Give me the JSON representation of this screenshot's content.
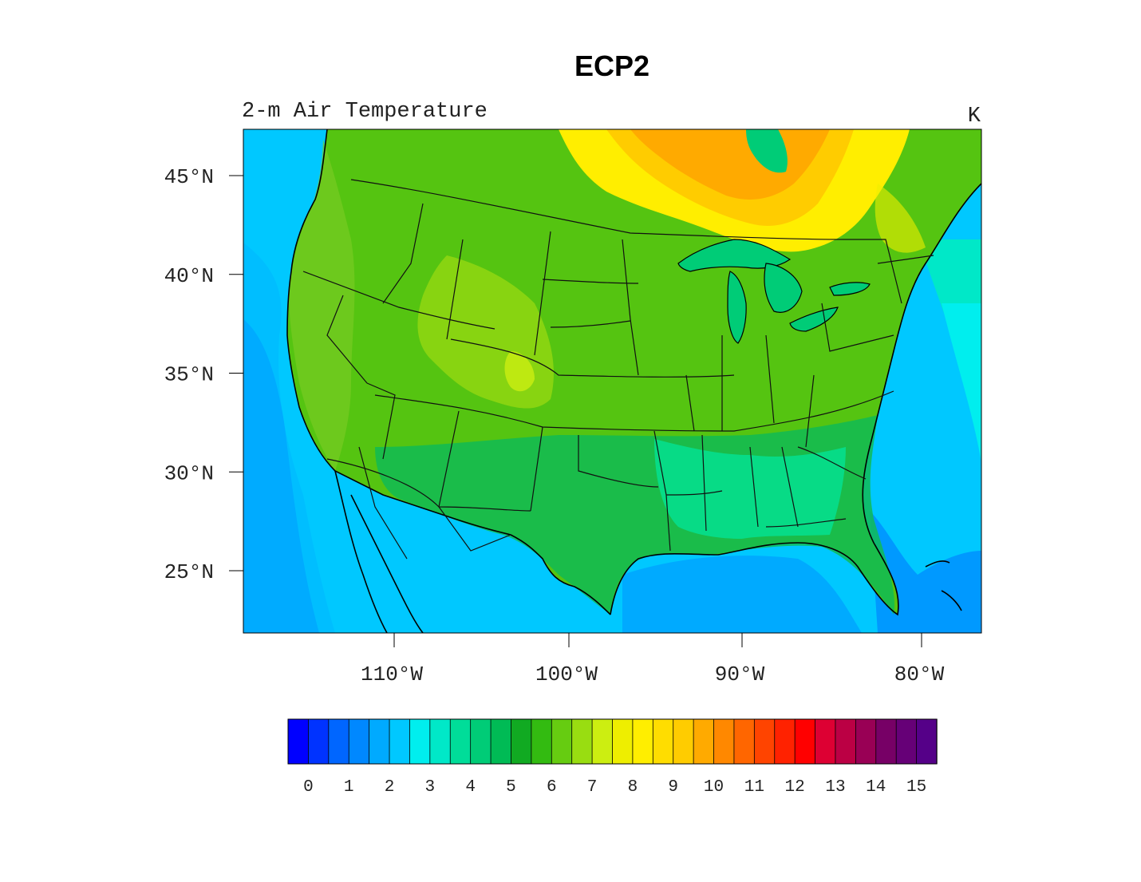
{
  "title": "ECP2",
  "subtitle": "2-m Air Temperature",
  "units": "K",
  "map": {
    "lat_ticks": [
      {
        "value": 45,
        "label": "45°N"
      },
      {
        "value": 40,
        "label": "40°N"
      },
      {
        "value": 35,
        "label": "35°N"
      },
      {
        "value": 30,
        "label": "30°N"
      },
      {
        "value": 25,
        "label": "25°N"
      }
    ],
    "lon_ticks": [
      {
        "value": -110,
        "label": "110°W"
      },
      {
        "value": -100,
        "label": "100°W"
      },
      {
        "value": -90,
        "label": "90°W"
      },
      {
        "value": -80,
        "label": "80°W"
      }
    ]
  },
  "colorbar": {
    "min": 0,
    "max": 16,
    "step": 0.5,
    "labels": [
      "0",
      "1",
      "2",
      "3",
      "4",
      "5",
      "6",
      "7",
      "8",
      "9",
      "10",
      "11",
      "12",
      "13",
      "14",
      "15"
    ],
    "colors": [
      "#0000ff",
      "#0033ff",
      "#0066ff",
      "#0088ff",
      "#00aaff",
      "#00c8ff",
      "#00eeee",
      "#00e8c8",
      "#00dd99",
      "#00cc77",
      "#00bb55",
      "#11aa22",
      "#33bb11",
      "#66cc11",
      "#99dd11",
      "#ccee11",
      "#eeee00",
      "#ffee00",
      "#ffdd00",
      "#ffcc00",
      "#ffaa00",
      "#ff8800",
      "#ff6600",
      "#ff4400",
      "#ff2200",
      "#ff0000",
      "#dd0033",
      "#bb0044",
      "#990055",
      "#770066",
      "#660077",
      "#550088"
    ]
  }
}
